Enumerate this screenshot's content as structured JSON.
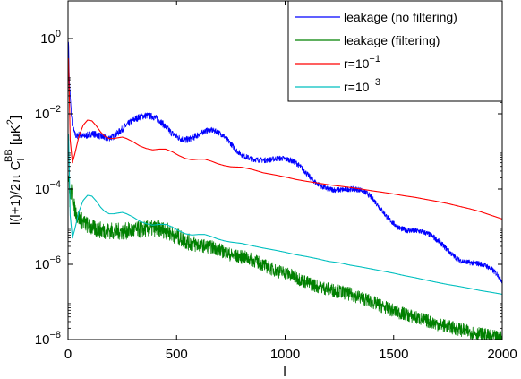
{
  "chart_data": {
    "type": "line",
    "title": "",
    "xlabel": "l",
    "ylabel": {
      "main": "l(l+1)/2π C",
      "sub": "l",
      "sup": "BB",
      "unit_open": " [μK",
      "unit_sup": "2",
      "unit_close": "]"
    },
    "xlim": [
      0,
      2000
    ],
    "ylim": [
      1e-08,
      10
    ],
    "yscale": "log",
    "grid": false,
    "legend_position": "top-right",
    "x_ticks": [
      {
        "value": 0,
        "label": "0"
      },
      {
        "value": 500,
        "label": "500"
      },
      {
        "value": 1000,
        "label": "1000"
      },
      {
        "value": 1500,
        "label": "1500"
      },
      {
        "value": 2000,
        "label": "2000"
      }
    ],
    "y_ticks": [
      {
        "value": 1e-08,
        "base": "10",
        "exp": "−8"
      },
      {
        "value": 1e-06,
        "base": "10",
        "exp": "−6"
      },
      {
        "value": 0.0001,
        "base": "10",
        "exp": "−4"
      },
      {
        "value": 0.01,
        "base": "10",
        "exp": "−2"
      },
      {
        "value": 1,
        "base": "10",
        "exp": "0"
      }
    ],
    "series": [
      {
        "name": "leakage (no filtering)",
        "legend_label": {
          "text": "leakage (no filtering)"
        },
        "color": "#0000ff",
        "noise": 0.18,
        "x": [
          2,
          6,
          10,
          15,
          20,
          30,
          40,
          50,
          70,
          90,
          110,
          130,
          150,
          180,
          210,
          240,
          270,
          300,
          330,
          360,
          390,
          420,
          450,
          480,
          510,
          540,
          570,
          600,
          630,
          660,
          690,
          720,
          750,
          780,
          810,
          840,
          870,
          900,
          930,
          960,
          990,
          1020,
          1050,
          1080,
          1110,
          1140,
          1170,
          1200,
          1230,
          1260,
          1290,
          1320,
          1350,
          1380,
          1410,
          1440,
          1470,
          1500,
          1530,
          1560,
          1590,
          1620,
          1650,
          1680,
          1710,
          1740,
          1770,
          1800,
          1830,
          1860,
          1890,
          1920,
          1950,
          1980,
          2000
        ],
        "y": [
          1.0,
          0.08,
          0.03,
          0.01,
          0.005,
          0.003,
          0.0025,
          0.0028,
          0.0025,
          0.0027,
          0.003,
          0.0028,
          0.0025,
          0.0022,
          0.0025,
          0.0035,
          0.005,
          0.0068,
          0.0083,
          0.009,
          0.0085,
          0.0068,
          0.0045,
          0.003,
          0.0023,
          0.002,
          0.0022,
          0.0028,
          0.0035,
          0.0037,
          0.0033,
          0.0025,
          0.0016,
          0.001,
          0.00075,
          0.00065,
          0.0006,
          0.00058,
          0.0006,
          0.00065,
          0.00065,
          0.0006,
          0.0005,
          0.00035,
          0.00022,
          0.00015,
          0.000115,
          0.0001,
          9.5e-05,
          9.5e-05,
          0.0001,
          0.0001,
          9.5e-05,
          7.5e-05,
          5e-05,
          3e-05,
          1.8e-05,
          1.2e-05,
          9e-06,
          8e-06,
          7.8e-06,
          7.6e-06,
          6.8e-06,
          5.5e-06,
          4e-06,
          2.7e-06,
          1.8e-06,
          1.3e-06,
          1.15e-06,
          1.1e-06,
          1.05e-06,
          9.5e-07,
          7.5e-07,
          5.2e-07,
          3.6e-07
        ]
      },
      {
        "name": "leakage (filtering)",
        "legend_label": {
          "text": "leakage (filtering)"
        },
        "color": "#008000",
        "noise": 0.45,
        "x": [
          2,
          8,
          15,
          25,
          40,
          60,
          80,
          100,
          130,
          160,
          190,
          220,
          250,
          280,
          310,
          340,
          370,
          400,
          430,
          460,
          490,
          520,
          550,
          580,
          610,
          640,
          670,
          700,
          730,
          760,
          790,
          820,
          850,
          880,
          910,
          940,
          970,
          1000,
          1050,
          1100,
          1150,
          1200,
          1250,
          1300,
          1350,
          1400,
          1450,
          1500,
          1550,
          1600,
          1650,
          1700,
          1750,
          1800,
          1850,
          1900,
          1950,
          2000
        ],
        "y": [
          0.0003,
          5e-05,
          9e-05,
          4e-05,
          2e-05,
          1.5e-05,
          1.2e-05,
          1e-05,
          8.5e-06,
          8e-06,
          7.8e-06,
          7.5e-06,
          7.5e-06,
          7.8e-06,
          8e-06,
          8.5e-06,
          8.8e-06,
          9e-06,
          8.5e-06,
          7.5e-06,
          6e-06,
          4.8e-06,
          4e-06,
          3.5e-06,
          3.2e-06,
          3e-06,
          2.8e-06,
          2.4e-06,
          2e-06,
          1.7e-06,
          1.6e-06,
          1.5e-06,
          1.3e-06,
          1.1e-06,
          9e-07,
          7.5e-07,
          6.5e-07,
          6e-07,
          4.5e-07,
          3.3e-07,
          2.6e-07,
          2.2e-07,
          1.9e-07,
          1.6e-07,
          1.3e-07,
          1e-07,
          7.5e-08,
          5.8e-08,
          4.7e-08,
          3.9e-08,
          3.2e-08,
          2.6e-08,
          2.2e-08,
          1.9e-08,
          1.6e-08,
          1.4e-08,
          1.2e-08,
          1.1e-08
        ]
      },
      {
        "name": "r=10^-1",
        "legend_label": {
          "text": "r=10",
          "sup": "−1"
        },
        "color": "#ff0000",
        "noise": 0,
        "x": [
          2,
          5,
          10,
          20,
          30,
          50,
          70,
          90,
          110,
          130,
          150,
          170,
          190,
          210,
          230,
          250,
          270,
          300,
          330,
          360,
          390,
          420,
          450,
          480,
          510,
          540,
          570,
          600,
          630,
          660,
          690,
          720,
          750,
          800,
          850,
          900,
          950,
          1000,
          1050,
          1100,
          1150,
          1200,
          1250,
          1300,
          1350,
          1400,
          1450,
          1500,
          1550,
          1600,
          1650,
          1700,
          1750,
          1800,
          1850,
          1900,
          1950,
          2000
        ],
        "y": [
          0.3,
          0.06,
          0.002,
          0.0005,
          0.0008,
          0.0025,
          0.005,
          0.0068,
          0.0065,
          0.0048,
          0.0033,
          0.0025,
          0.0022,
          0.0022,
          0.0023,
          0.0024,
          0.0022,
          0.0018,
          0.0014,
          0.0012,
          0.0011,
          0.00115,
          0.00115,
          0.00098,
          0.00078,
          0.00065,
          0.0006,
          0.00062,
          0.00062,
          0.00055,
          0.00047,
          0.00042,
          0.00039,
          0.00038,
          0.00033,
          0.00027,
          0.00024,
          0.00021,
          0.00018,
          0.00016,
          0.000145,
          0.00013,
          0.00012,
          0.00011,
          0.0001,
          9e-05,
          8.2e-05,
          7.4e-05,
          6.6e-05,
          6e-05,
          5.3e-05,
          4.7e-05,
          4.1e-05,
          3.5e-05,
          3e-05,
          2.5e-05,
          2e-05,
          1.6e-05
        ]
      },
      {
        "name": "r=10^-3",
        "legend_label": {
          "text": "r=10",
          "sup": "−3"
        },
        "color": "#00bfbf",
        "noise": 0,
        "x": [
          2,
          5,
          10,
          20,
          30,
          50,
          70,
          90,
          110,
          130,
          150,
          170,
          190,
          210,
          230,
          250,
          270,
          300,
          330,
          360,
          390,
          420,
          450,
          480,
          510,
          540,
          570,
          600,
          630,
          660,
          690,
          720,
          750,
          800,
          850,
          900,
          950,
          1000,
          1050,
          1100,
          1150,
          1200,
          1250,
          1300,
          1350,
          1400,
          1450,
          1500,
          1550,
          1600,
          1650,
          1700,
          1750,
          1800,
          1850,
          1900,
          1950,
          2000
        ],
        "y": [
          0.003,
          0.0006,
          2e-05,
          5e-06,
          8e-06,
          2.5e-05,
          5e-05,
          6.8e-05,
          6.5e-05,
          4.8e-05,
          3.3e-05,
          2.5e-05,
          2.2e-05,
          2.2e-05,
          2.3e-05,
          2.4e-05,
          2.2e-05,
          1.8e-05,
          1.4e-05,
          1.2e-05,
          1.1e-05,
          1.15e-05,
          1.15e-05,
          9.8e-06,
          7.8e-06,
          6.5e-06,
          6e-06,
          6.2e-06,
          6.2e-06,
          5.5e-06,
          4.7e-06,
          4.2e-06,
          3.9e-06,
          3.6e-06,
          3.1e-06,
          2.7e-06,
          2.4e-06,
          2.1e-06,
          1.8e-06,
          1.6e-06,
          1.4e-06,
          1.2e-06,
          1.1e-06,
          9.5e-07,
          8.5e-07,
          7.5e-07,
          6.6e-07,
          5.8e-07,
          5e-07,
          4.4e-07,
          3.8e-07,
          3.3e-07,
          2.9e-07,
          2.6e-07,
          2.3e-07,
          2e-07,
          1.8e-07,
          1.6e-07
        ]
      }
    ]
  }
}
